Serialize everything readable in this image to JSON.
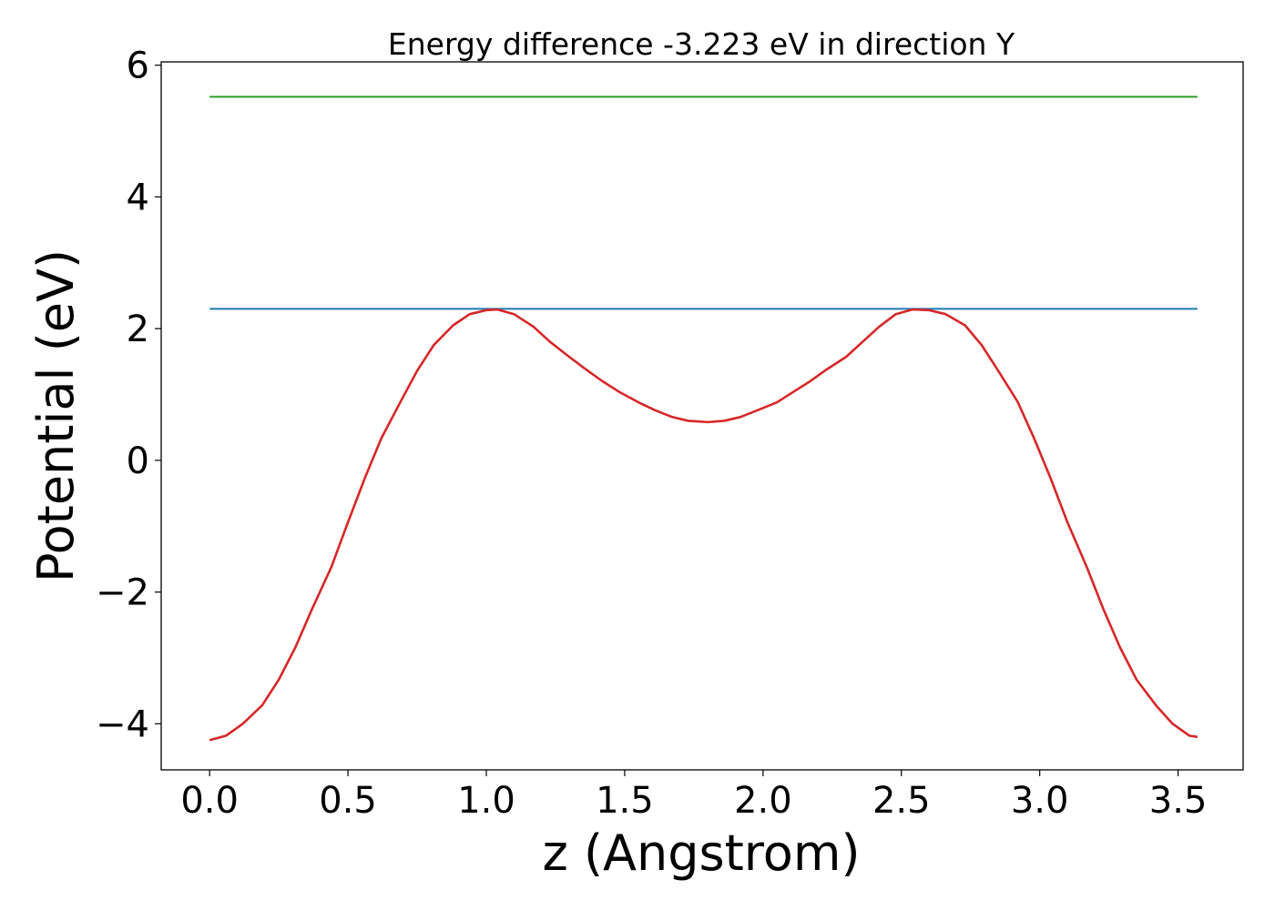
{
  "chart_data": {
    "type": "line",
    "title": "Energy difference -3.223 eV in direction Y",
    "xlabel": "z (Angstrom)",
    "ylabel": "Potential (eV)",
    "xlim": [
      -0.175,
      3.735
    ],
    "ylim": [
      -4.7,
      6.05
    ],
    "xticks": [
      0.0,
      0.5,
      1.0,
      1.5,
      2.0,
      2.5,
      3.0,
      3.5
    ],
    "xtick_labels": [
      "0.0",
      "0.5",
      "1.0",
      "1.5",
      "2.0",
      "2.5",
      "3.0",
      "3.5"
    ],
    "yticks": [
      -4,
      -2,
      0,
      2,
      4,
      6
    ],
    "ytick_labels": [
      "−4",
      "−2",
      "0",
      "2",
      "4",
      "6"
    ],
    "grid": false,
    "legend": "none",
    "series": [
      {
        "color": "#2ca02c",
        "style": "hline",
        "x": [
          0.0,
          3.57
        ],
        "y": [
          5.52,
          5.52
        ]
      },
      {
        "color": "#1f77b4",
        "style": "hline",
        "x": [
          0.0,
          3.57
        ],
        "y": [
          2.3,
          2.3
        ]
      },
      {
        "color": "#d62728",
        "style": "curve",
        "x": [
          0.0,
          0.06,
          0.12,
          0.19,
          0.25,
          0.31,
          0.37,
          0.44,
          0.5,
          0.56,
          0.62,
          0.69,
          0.75,
          0.81,
          0.88,
          0.94,
          1.0,
          1.04,
          1.1,
          1.17,
          1.23,
          1.3,
          1.36,
          1.42,
          1.48,
          1.55,
          1.61,
          1.67,
          1.73,
          1.8,
          1.86,
          1.92,
          1.98,
          2.05,
          2.11,
          2.17,
          2.23,
          2.3,
          2.36,
          2.42,
          2.48,
          2.54,
          2.6,
          2.66,
          2.73,
          2.79,
          2.85,
          2.92,
          2.98,
          3.04,
          3.1,
          3.17,
          3.23,
          3.29,
          3.35,
          3.42,
          3.48,
          3.54,
          3.57
        ],
        "y": [
          -4.25,
          -4.18,
          -4.0,
          -3.72,
          -3.33,
          -2.84,
          -2.26,
          -1.62,
          -0.94,
          -0.28,
          0.33,
          0.89,
          1.36,
          1.75,
          2.05,
          2.22,
          2.28,
          2.29,
          2.22,
          2.03,
          1.8,
          1.57,
          1.38,
          1.2,
          1.04,
          0.88,
          0.76,
          0.66,
          0.6,
          0.58,
          0.6,
          0.66,
          0.76,
          0.88,
          1.04,
          1.2,
          1.38,
          1.57,
          1.8,
          2.03,
          2.22,
          2.29,
          2.28,
          2.22,
          2.05,
          1.75,
          1.36,
          0.89,
          0.33,
          -0.28,
          -0.94,
          -1.62,
          -2.26,
          -2.84,
          -3.33,
          -3.72,
          -4.0,
          -4.18,
          -4.2
        ]
      }
    ]
  }
}
